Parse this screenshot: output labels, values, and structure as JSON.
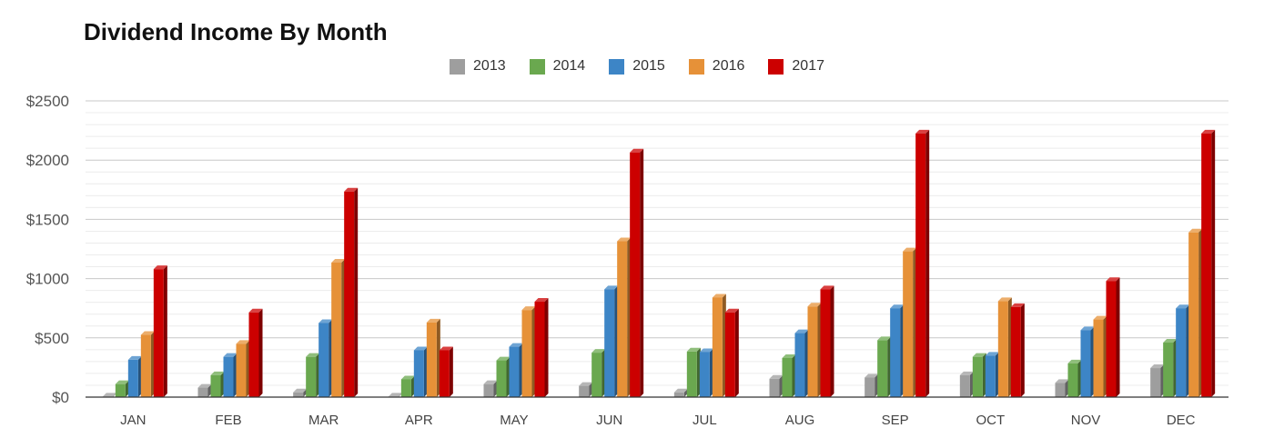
{
  "chart_data": {
    "type": "bar",
    "title": "Dividend Income By Month",
    "categories": [
      "JAN",
      "FEB",
      "MAR",
      "APR",
      "MAY",
      "JUN",
      "JUL",
      "AUG",
      "SEP",
      "OCT",
      "NOV",
      "DEC"
    ],
    "series": [
      {
        "name": "2013",
        "color": "#9e9e9e",
        "values": [
          5,
          80,
          40,
          5,
          110,
          95,
          40,
          155,
          165,
          185,
          120,
          245
        ]
      },
      {
        "name": "2014",
        "color": "#6aa84f",
        "values": [
          110,
          185,
          340,
          150,
          310,
          375,
          385,
          330,
          480,
          340,
          285,
          460
        ]
      },
      {
        "name": "2015",
        "color": "#3d85c6",
        "values": [
          315,
          340,
          625,
          395,
          425,
          910,
          380,
          540,
          750,
          350,
          565,
          750
        ]
      },
      {
        "name": "2016",
        "color": "#e69138",
        "values": [
          525,
          450,
          1135,
          630,
          735,
          1315,
          840,
          765,
          1230,
          810,
          655,
          1390
        ]
      },
      {
        "name": "2017",
        "color": "#cc0000",
        "values": [
          1080,
          715,
          1735,
          395,
          805,
          2065,
          715,
          910,
          2225,
          760,
          980,
          2225
        ]
      }
    ],
    "ylim": [
      0,
      2500
    ],
    "yticks": [
      0,
      500,
      1000,
      1500,
      2000,
      2500
    ],
    "ytick_labels": [
      "$0",
      "$500",
      "$1000",
      "$1500",
      "$2000",
      "$2500"
    ],
    "minor_gridlines": true,
    "legend_position": "top-center"
  }
}
